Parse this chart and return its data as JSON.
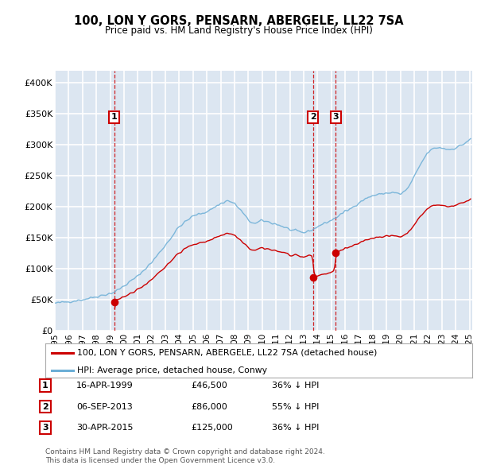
{
  "title": "100, LON Y GORS, PENSARN, ABERGELE, LL22 7SA",
  "subtitle": "Price paid vs. HM Land Registry's House Price Index (HPI)",
  "ylim": [
    0,
    420000
  ],
  "yticks": [
    0,
    50000,
    100000,
    150000,
    200000,
    250000,
    300000,
    350000,
    400000
  ],
  "ytick_labels": [
    "£0",
    "£50K",
    "£100K",
    "£150K",
    "£200K",
    "£250K",
    "£300K",
    "£350K",
    "£400K"
  ],
  "plot_bg_color": "#dce6f1",
  "grid_color": "#ffffff",
  "sale_color": "#cc0000",
  "hpi_color": "#6baed6",
  "sale_label": "100, LON Y GORS, PENSARN, ABERGELE, LL22 7SA (detached house)",
  "hpi_label": "HPI: Average price, detached house, Conwy",
  "transactions": [
    {
      "num": 1,
      "date": "16-APR-1999",
      "price": 46500,
      "pct": "36%",
      "x_year": 1999.29
    },
    {
      "num": 2,
      "date": "06-SEP-2013",
      "price": 86000,
      "pct": "55%",
      "x_year": 2013.68
    },
    {
      "num": 3,
      "date": "30-APR-2015",
      "price": 125000,
      "pct": "36%",
      "x_year": 2015.33
    }
  ],
  "footer1": "Contains HM Land Registry data © Crown copyright and database right 2024.",
  "footer2": "This data is licensed under the Open Government Licence v3.0.",
  "xlim": [
    1995.0,
    2025.2
  ],
  "xtick_years": [
    1995,
    1996,
    1997,
    1998,
    1999,
    2000,
    2001,
    2002,
    2003,
    2004,
    2005,
    2006,
    2007,
    2008,
    2009,
    2010,
    2011,
    2012,
    2013,
    2014,
    2015,
    2016,
    2017,
    2018,
    2019,
    2020,
    2021,
    2022,
    2023,
    2024,
    2025
  ]
}
